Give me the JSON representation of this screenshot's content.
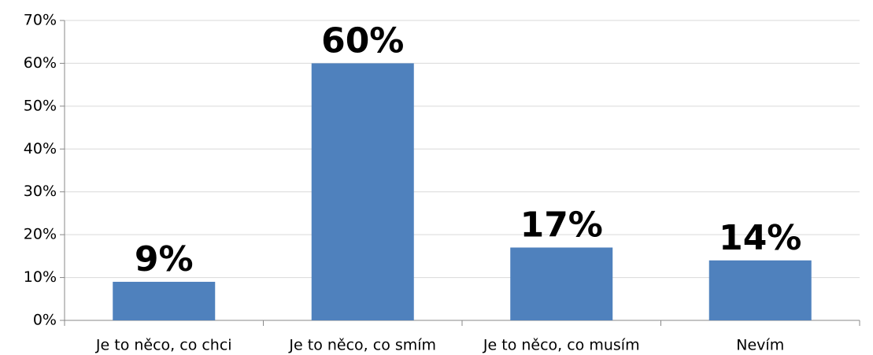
{
  "chart_data": {
    "type": "bar",
    "categories": [
      "Je to něco, co chci",
      "Je to něco, co smím",
      "Je to něco, co musím",
      "Nevím"
    ],
    "values": [
      9,
      60,
      17,
      14
    ],
    "value_labels": [
      "9%",
      "60%",
      "17%",
      "14%"
    ],
    "color": "#4f81bd",
    "ylim": [
      0,
      70
    ],
    "yticks": [
      {
        "value": 0,
        "label": "0%"
      },
      {
        "value": 10,
        "label": "10%"
      },
      {
        "value": 20,
        "label": "20%"
      },
      {
        "value": 30,
        "label": "30%"
      },
      {
        "value": 40,
        "label": "40%"
      },
      {
        "value": 50,
        "label": "50%"
      },
      {
        "value": 60,
        "label": "60%"
      },
      {
        "value": 70,
        "label": "70%"
      }
    ],
    "grid": true
  }
}
